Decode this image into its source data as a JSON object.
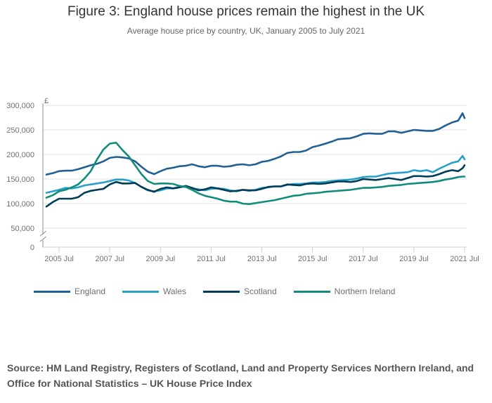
{
  "title": "Figure 3: England house prices remain the highest in the UK",
  "subtitle": "Average house price by country, UK, January 2005 to July 2021",
  "source": "Source: HM Land Registry, Registers of Scotland, Land and Property Services Northern Ireland, and Office for National Statistics – UK House Price Index",
  "chart_data": {
    "type": "line",
    "title": "Figure 3: England house prices remain the highest in the UK",
    "subtitle": "Average house price by country, UK, January 2005 to July 2021",
    "xlabel": "",
    "ylabel": "£",
    "ylim": [
      0,
      300000
    ],
    "y_axis_break": true,
    "grid": true,
    "legend_position": "bottom",
    "yticks": [
      0,
      50000,
      100000,
      150000,
      200000,
      250000,
      300000
    ],
    "ytick_labels": [
      "0",
      "50,000",
      "100,000",
      "150,000",
      "200,000",
      "250,000",
      "300,000"
    ],
    "xtick_labels": [
      "2005 Jul",
      "2007 Jul",
      "2009 Jul",
      "2011 Jul",
      "2013 Jul",
      "2015 Jul",
      "2017 Jul",
      "2019 Jul",
      "2021 Jul"
    ],
    "xticks_year": [
      2005.5,
      2007.5,
      2009.5,
      2011.5,
      2013.5,
      2015.5,
      2017.5,
      2019.5,
      2021.5
    ],
    "x": [
      2005.0,
      2005.25,
      2005.5,
      2005.75,
      2006.0,
      2006.25,
      2006.5,
      2006.75,
      2007.0,
      2007.25,
      2007.5,
      2007.75,
      2008.0,
      2008.25,
      2008.5,
      2008.75,
      2009.0,
      2009.25,
      2009.5,
      2009.75,
      2010.0,
      2010.25,
      2010.5,
      2010.75,
      2011.0,
      2011.25,
      2011.5,
      2011.75,
      2012.0,
      2012.25,
      2012.5,
      2012.75,
      2013.0,
      2013.25,
      2013.5,
      2013.75,
      2014.0,
      2014.25,
      2014.5,
      2014.75,
      2015.0,
      2015.25,
      2015.5,
      2015.75,
      2016.0,
      2016.25,
      2016.5,
      2016.75,
      2017.0,
      2017.25,
      2017.5,
      2017.75,
      2018.0,
      2018.25,
      2018.5,
      2018.75,
      2019.0,
      2019.25,
      2019.5,
      2019.75,
      2020.0,
      2020.25,
      2020.5,
      2020.75,
      2021.0,
      2021.25,
      2021.42,
      2021.5
    ],
    "series": [
      {
        "name": "England",
        "color": "#206095",
        "values": [
          159000,
          162000,
          166000,
          167000,
          167000,
          170000,
          174000,
          178000,
          181000,
          186000,
          193000,
          195000,
          194000,
          192000,
          186000,
          175000,
          165000,
          160000,
          166000,
          171000,
          173000,
          176000,
          177000,
          180000,
          176000,
          174000,
          177000,
          177000,
          175000,
          176000,
          179000,
          180000,
          178000,
          180000,
          185000,
          187000,
          191000,
          196000,
          203000,
          205000,
          205000,
          208000,
          215000,
          218000,
          222000,
          226000,
          231000,
          232000,
          233000,
          237000,
          242000,
          243000,
          242000,
          242000,
          247000,
          247000,
          244000,
          247000,
          250000,
          249000,
          248000,
          248000,
          252000,
          259000,
          265000,
          269000,
          284000,
          274000
        ]
      },
      {
        "name": "Wales",
        "color": "#27a0cc",
        "values": [
          122000,
          125000,
          128000,
          132000,
          131000,
          133000,
          137000,
          139000,
          141000,
          143000,
          146000,
          149000,
          149000,
          147000,
          142000,
          134000,
          127000,
          125000,
          127000,
          131000,
          131000,
          134000,
          134000,
          131000,
          129000,
          127000,
          130000,
          131000,
          130000,
          127000,
          125000,
          128000,
          126000,
          128000,
          132000,
          133000,
          135000,
          135000,
          138000,
          140000,
          140000,
          141000,
          143000,
          143000,
          144000,
          146000,
          147000,
          148000,
          149000,
          151000,
          154000,
          155000,
          155000,
          158000,
          161000,
          162000,
          163000,
          164000,
          168000,
          166000,
          168000,
          164000,
          171000,
          177000,
          183000,
          186000,
          197000,
          190000
        ]
      },
      {
        "name": "Scotland",
        "color": "#003c57",
        "values": [
          94000,
          103000,
          110000,
          110000,
          110000,
          113000,
          122000,
          126000,
          128000,
          130000,
          139000,
          144000,
          141000,
          141000,
          142000,
          134000,
          128000,
          124000,
          130000,
          133000,
          131000,
          133000,
          136000,
          132000,
          127000,
          129000,
          133000,
          131000,
          128000,
          125000,
          126000,
          128000,
          127000,
          127000,
          130000,
          134000,
          135000,
          135000,
          139000,
          138000,
          137000,
          140000,
          141000,
          140000,
          141000,
          143000,
          145000,
          145000,
          144000,
          146000,
          150000,
          149000,
          148000,
          150000,
          152000,
          150000,
          148000,
          152000,
          156000,
          156000,
          155000,
          156000,
          160000,
          165000,
          168000,
          166000,
          172000,
          178000
        ]
      },
      {
        "name": "Northern Ireland",
        "color": "#118c7b",
        "values": [
          112000,
          117000,
          125000,
          128000,
          133000,
          139000,
          151000,
          166000,
          190000,
          210000,
          222000,
          224000,
          209000,
          196000,
          178000,
          160000,
          146000,
          140000,
          141000,
          141000,
          140000,
          136000,
          134000,
          128000,
          121000,
          116000,
          113000,
          110000,
          106000,
          104000,
          104000,
          100000,
          99000,
          101000,
          103000,
          105000,
          107000,
          110000,
          113000,
          116000,
          117000,
          120000,
          121000,
          122000,
          124000,
          125000,
          126000,
          127000,
          128000,
          130000,
          132000,
          132000,
          133000,
          134000,
          136000,
          137000,
          138000,
          140000,
          141000,
          142000,
          143000,
          144000,
          146000,
          149000,
          151000,
          154000,
          155000,
          155000
        ]
      }
    ]
  },
  "legend": [
    {
      "label": "England",
      "color": "#206095"
    },
    {
      "label": "Wales",
      "color": "#27a0cc"
    },
    {
      "label": "Scotland",
      "color": "#003c57"
    },
    {
      "label": "Northern Ireland",
      "color": "#118c7b"
    }
  ]
}
